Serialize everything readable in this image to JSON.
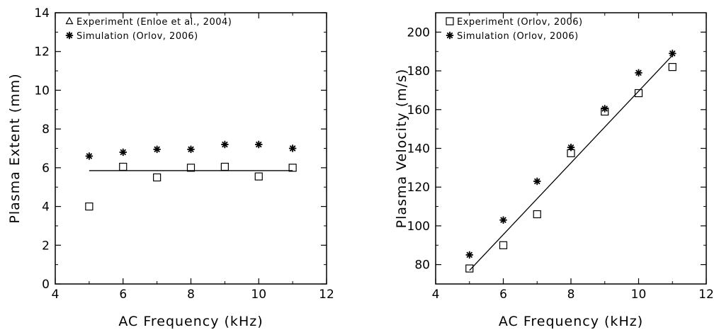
{
  "chart_data": [
    {
      "type": "scatter",
      "xlabel": "AC Frequency (kHz)",
      "ylabel": "Plasma Extent (mm)",
      "xlim": [
        4,
        12
      ],
      "ylim": [
        0,
        14
      ],
      "xticks": [
        4,
        6,
        8,
        10,
        12
      ],
      "yticks": [
        0,
        2,
        4,
        6,
        8,
        10,
        12,
        14
      ],
      "legend_position": "top-left",
      "series": [
        {
          "name": "Experiment (Enloe et al., 2004)",
          "legend_marker": "triangle",
          "plot_marker": "square",
          "x": [
            5,
            6,
            7,
            8,
            9,
            10,
            11
          ],
          "y": [
            4.0,
            6.05,
            5.5,
            6.0,
            6.05,
            5.55,
            6.0
          ]
        },
        {
          "name": "Simulation (Orlov, 2006)",
          "legend_marker": "asterisk",
          "plot_marker": "asterisk",
          "x": [
            5,
            6,
            7,
            8,
            9,
            10,
            11
          ],
          "y": [
            6.6,
            6.8,
            6.95,
            6.95,
            7.2,
            7.2,
            7.0
          ]
        }
      ],
      "fit_line": {
        "x": [
          5,
          11
        ],
        "y": [
          5.85,
          5.85
        ]
      }
    },
    {
      "type": "scatter",
      "xlabel": "AC Frequency (kHz)",
      "ylabel": "Plasma Velocity (m/s)",
      "xlim": [
        4,
        12
      ],
      "ylim": [
        70,
        210
      ],
      "xticks": [
        4,
        6,
        8,
        10,
        12
      ],
      "yticks": [
        80,
        100,
        120,
        140,
        160,
        180,
        200
      ],
      "legend_position": "top-left",
      "series": [
        {
          "name": "Experiment (Orlov, 2006)",
          "legend_marker": "square",
          "plot_marker": "square",
          "x": [
            5,
            6,
            7,
            8,
            9,
            10,
            11
          ],
          "y": [
            78,
            90,
            106,
            137.5,
            159,
            168.5,
            182
          ]
        },
        {
          "name": "Simulation (Orlov, 2006)",
          "legend_marker": "asterisk",
          "plot_marker": "asterisk",
          "x": [
            5,
            6,
            7,
            8,
            9,
            10,
            11
          ],
          "y": [
            85,
            103,
            123,
            140.5,
            160.5,
            179,
            189
          ]
        }
      ],
      "fit_line": {
        "x": [
          5,
          11
        ],
        "y": [
          77,
          188
        ]
      }
    }
  ]
}
